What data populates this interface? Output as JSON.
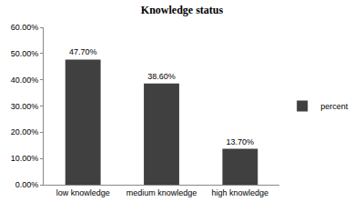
{
  "chart_data": {
    "type": "bar",
    "title": "Knowledge status",
    "categories": [
      "low knowledge",
      "medium knowledge",
      "high knowledge"
    ],
    "series": [
      {
        "name": "percent",
        "color": "#404040",
        "values": [
          47.7,
          38.6,
          13.7
        ],
        "value_labels": [
          "47.70%",
          "38.60%",
          "13.70%"
        ]
      }
    ],
    "ylim": [
      0,
      60
    ],
    "yticks": [
      {
        "value": 0,
        "label": "0.00%"
      },
      {
        "value": 10,
        "label": "10.00%"
      },
      {
        "value": 20,
        "label": "20.00%"
      },
      {
        "value": 30,
        "label": "30.00%"
      },
      {
        "value": 40,
        "label": "40.00%"
      },
      {
        "value": 50,
        "label": "50.00%"
      },
      {
        "value": 60,
        "label": "60.00%"
      }
    ],
    "grid": false,
    "legend": "right",
    "data_labels": true
  }
}
